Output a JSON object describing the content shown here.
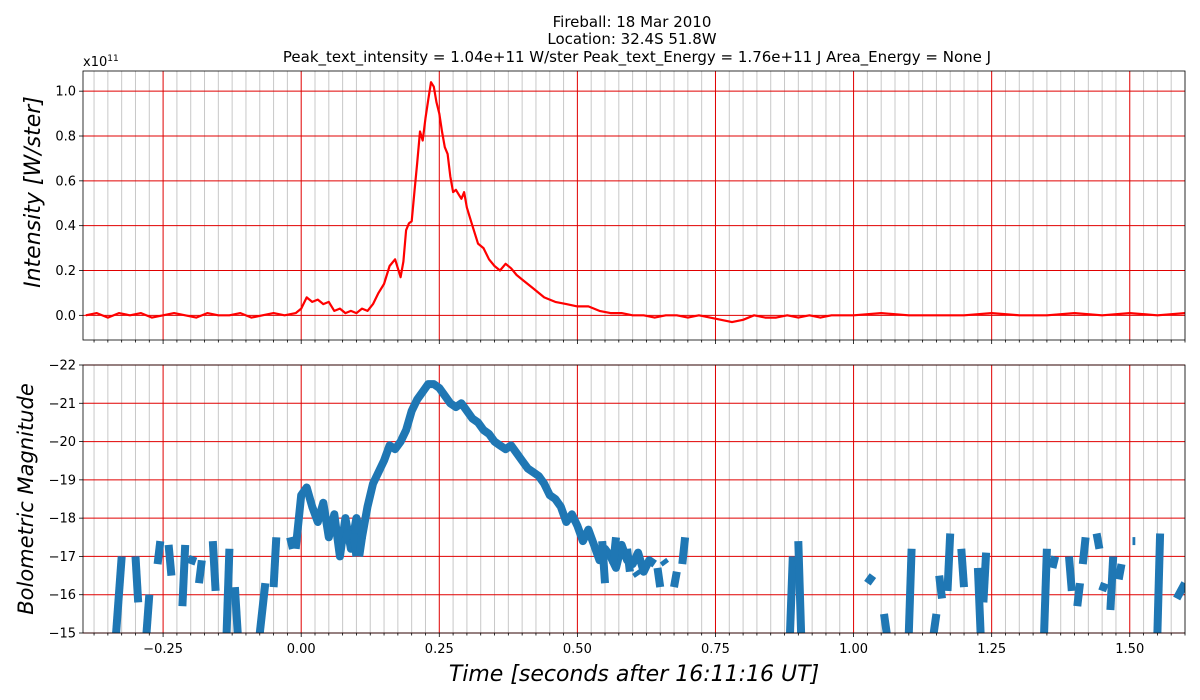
{
  "title_lines": [
    "Fireball: 18 Mar 2010",
    "Location: 32.4S  51.8W",
    "Peak_text_intensity = 1.04e+11 W/ster       Peak_text_Energy = 1.76e+11 J       Area_Energy = None J"
  ],
  "chart_data": [
    {
      "type": "line",
      "ylabel": "Intensity [W/ster]",
      "y_multiplier_label": "x10",
      "y_multiplier_exp": "11",
      "xlim": [
        -0.395,
        1.6
      ],
      "ylim": [
        -0.11,
        1.09
      ],
      "yticks": [
        0.0,
        0.2,
        0.4,
        0.6,
        0.8,
        1.0
      ],
      "ytick_labels": [
        "0.0",
        "0.2",
        "0.4",
        "0.6",
        "0.8",
        "1.0"
      ],
      "grid": true,
      "series": [
        {
          "color": "#ff0000",
          "x": [
            -0.39,
            -0.37,
            -0.35,
            -0.33,
            -0.31,
            -0.29,
            -0.27,
            -0.25,
            -0.23,
            -0.21,
            -0.19,
            -0.17,
            -0.15,
            -0.13,
            -0.11,
            -0.09,
            -0.07,
            -0.05,
            -0.03,
            -0.01,
            0.0,
            0.01,
            0.02,
            0.03,
            0.04,
            0.05,
            0.06,
            0.07,
            0.08,
            0.09,
            0.1,
            0.11,
            0.12,
            0.13,
            0.14,
            0.15,
            0.16,
            0.17,
            0.18,
            0.185,
            0.19,
            0.195,
            0.2,
            0.205,
            0.21,
            0.215,
            0.22,
            0.225,
            0.23,
            0.235,
            0.24,
            0.245,
            0.25,
            0.255,
            0.26,
            0.265,
            0.27,
            0.275,
            0.28,
            0.285,
            0.29,
            0.295,
            0.3,
            0.31,
            0.32,
            0.33,
            0.34,
            0.35,
            0.36,
            0.37,
            0.38,
            0.39,
            0.4,
            0.42,
            0.44,
            0.46,
            0.48,
            0.5,
            0.52,
            0.54,
            0.56,
            0.58,
            0.6,
            0.62,
            0.64,
            0.66,
            0.68,
            0.7,
            0.72,
            0.74,
            0.76,
            0.78,
            0.8,
            0.82,
            0.84,
            0.86,
            0.88,
            0.9,
            0.92,
            0.94,
            0.96,
            0.98,
            1.0,
            1.05,
            1.1,
            1.15,
            1.2,
            1.25,
            1.3,
            1.35,
            1.4,
            1.45,
            1.5,
            1.55,
            1.6
          ],
          "y": [
            0.0,
            0.01,
            -0.01,
            0.01,
            0.0,
            0.01,
            -0.01,
            0.0,
            0.01,
            0.0,
            -0.01,
            0.01,
            0.0,
            0.0,
            0.01,
            -0.01,
            0.0,
            0.01,
            0.0,
            0.01,
            0.03,
            0.08,
            0.06,
            0.07,
            0.05,
            0.06,
            0.02,
            0.03,
            0.01,
            0.02,
            0.01,
            0.03,
            0.02,
            0.05,
            0.1,
            0.14,
            0.22,
            0.25,
            0.17,
            0.24,
            0.38,
            0.41,
            0.42,
            0.55,
            0.68,
            0.82,
            0.78,
            0.88,
            0.96,
            1.04,
            1.02,
            0.95,
            0.9,
            0.82,
            0.75,
            0.72,
            0.62,
            0.55,
            0.56,
            0.54,
            0.52,
            0.55,
            0.48,
            0.4,
            0.32,
            0.3,
            0.25,
            0.22,
            0.2,
            0.23,
            0.21,
            0.18,
            0.16,
            0.12,
            0.08,
            0.06,
            0.05,
            0.04,
            0.04,
            0.02,
            0.01,
            0.01,
            0.0,
            0.0,
            -0.01,
            0.0,
            0.0,
            -0.01,
            0.0,
            -0.01,
            -0.02,
            -0.03,
            -0.02,
            0.0,
            -0.01,
            -0.01,
            0.0,
            -0.01,
            0.0,
            -0.01,
            0.0,
            0.0,
            0.0,
            0.01,
            0.0,
            0.0,
            0.0,
            0.01,
            0.0,
            0.0,
            0.01,
            0.0,
            0.01,
            0.0,
            0.01
          ]
        }
      ]
    },
    {
      "type": "line",
      "ylabel": "Bolometric Magnitude",
      "xlabel": "Time [seconds after 16:11:16 UT]",
      "xlim": [
        -0.395,
        1.6
      ],
      "ylim": [
        -15,
        -22
      ],
      "yticks": [
        -22,
        -21,
        -20,
        -19,
        -18,
        -17,
        -16,
        -15
      ],
      "ytick_labels": [
        "−22",
        "−21",
        "−20",
        "−19",
        "−18",
        "−17",
        "−16",
        "−15"
      ],
      "xticks": [
        -0.25,
        0.0,
        0.25,
        0.5,
        0.75,
        1.0,
        1.25,
        1.5
      ],
      "xtick_labels": [
        "−0.25",
        "0.00",
        "0.25",
        "0.50",
        "0.75",
        "1.00",
        "1.25",
        "1.50"
      ],
      "grid": true,
      "series": [
        {
          "color": "#1f77b4",
          "main_x": [
            -0.01,
            0.0,
            0.01,
            0.02,
            0.03,
            0.04,
            0.05,
            0.06,
            0.07,
            0.08,
            0.09,
            0.1,
            0.11,
            0.12,
            0.13,
            0.14,
            0.15,
            0.16,
            0.17,
            0.18,
            0.19,
            0.2,
            0.21,
            0.22,
            0.23,
            0.24,
            0.25,
            0.26,
            0.27,
            0.28,
            0.29,
            0.3,
            0.31,
            0.32,
            0.33,
            0.34,
            0.35,
            0.36,
            0.37,
            0.38,
            0.39,
            0.4,
            0.41,
            0.42,
            0.43,
            0.44,
            0.45,
            0.46,
            0.47,
            0.48,
            0.49,
            0.5,
            0.51,
            0.52,
            0.53,
            0.54,
            0.55,
            0.56,
            0.57,
            0.58,
            0.59,
            0.6,
            0.61,
            0.62,
            0.63,
            0.64
          ],
          "main_y": [
            -17.2,
            -18.6,
            -18.8,
            -18.3,
            -17.9,
            -18.4,
            -17.5,
            -18.1,
            -17.0,
            -18.0,
            -17.2,
            -18.0,
            -17.5,
            -18.3,
            -18.9,
            -19.2,
            -19.5,
            -19.9,
            -19.8,
            -20.0,
            -20.3,
            -20.8,
            -21.1,
            -21.3,
            -21.5,
            -21.5,
            -21.4,
            -21.2,
            -21.0,
            -20.9,
            -21.0,
            -20.8,
            -20.6,
            -20.5,
            -20.3,
            -20.2,
            -20.0,
            -19.9,
            -19.8,
            -19.9,
            -19.7,
            -19.5,
            -19.3,
            -19.2,
            -19.1,
            -18.9,
            -18.6,
            -18.5,
            -18.3,
            -17.9,
            -18.1,
            -17.8,
            -17.4,
            -17.7,
            -17.3,
            -16.9,
            -17.2,
            -17.0,
            -16.7,
            -17.3,
            -16.9,
            -16.8,
            -17.1,
            -16.6,
            -16.9,
            -16.8
          ],
          "seg_x": [
            [
              -0.335,
              -0.325
            ],
            [
              -0.3,
              -0.295
            ],
            [
              -0.28,
              -0.275
            ],
            [
              -0.26,
              -0.255
            ],
            [
              -0.24,
              -0.235
            ],
            [
              -0.215,
              -0.21
            ],
            [
              -0.2,
              -0.195
            ],
            [
              -0.185,
              -0.18
            ],
            [
              -0.16,
              -0.155
            ],
            [
              -0.135,
              -0.13
            ],
            [
              -0.12,
              -0.115
            ],
            [
              -0.075,
              -0.065
            ],
            [
              -0.05,
              -0.045
            ],
            [
              -0.02,
              -0.015
            ],
            [
              0.08,
              0.085
            ],
            [
              0.095,
              0.1
            ],
            [
              0.105,
              0.11
            ],
            [
              0.545,
              0.55
            ],
            [
              0.565,
              0.57
            ],
            [
              0.59,
              0.595
            ],
            [
              0.605,
              0.61
            ],
            [
              0.645,
              0.65
            ],
            [
              0.655,
              0.66
            ],
            [
              0.675,
              0.68
            ],
            [
              0.69,
              0.695
            ],
            [
              0.885,
              0.89
            ],
            [
              0.9,
              0.905
            ],
            [
              1.025,
              1.035
            ],
            [
              1.055,
              1.06
            ],
            [
              1.1,
              1.105
            ],
            [
              1.145,
              1.15
            ],
            [
              1.155,
              1.16
            ],
            [
              1.17,
              1.175
            ],
            [
              1.195,
              1.2
            ],
            [
              1.225,
              1.23
            ],
            [
              1.235,
              1.24
            ],
            [
              1.345,
              1.35
            ],
            [
              1.36,
              1.365
            ],
            [
              1.39,
              1.395
            ],
            [
              1.405,
              1.41
            ],
            [
              1.415,
              1.42
            ],
            [
              1.44,
              1.445
            ],
            [
              1.45,
              1.455
            ],
            [
              1.465,
              1.47
            ],
            [
              1.48,
              1.485
            ],
            [
              1.505,
              1.51
            ],
            [
              1.55,
              1.555
            ],
            [
              1.585,
              1.6
            ]
          ],
          "seg_y": [
            [
              -15.0,
              -17.0
            ],
            [
              -17.0,
              -15.8
            ],
            [
              -15.0,
              -16.0
            ],
            [
              -16.8,
              -17.4
            ],
            [
              -17.3,
              -16.5
            ],
            [
              -15.7,
              -17.3
            ],
            [
              -16.8,
              -17.0
            ],
            [
              -16.3,
              -16.9
            ],
            [
              -17.4,
              -16.1
            ],
            [
              -15.0,
              -17.2
            ],
            [
              -16.2,
              -15.0
            ],
            [
              -15.0,
              -16.3
            ],
            [
              -16.2,
              -17.5
            ],
            [
              -17.5,
              -17.2
            ],
            [
              -17.4,
              -17.7
            ],
            [
              -17.6,
              -17.0
            ],
            [
              -17.0,
              -17.5
            ],
            [
              -17.4,
              -16.3
            ],
            [
              -16.8,
              -17.5
            ],
            [
              -17.2,
              -16.6
            ],
            [
              -16.6,
              -16.5
            ],
            [
              -16.7,
              -16.2
            ],
            [
              -16.9,
              -16.8
            ],
            [
              -16.2,
              -16.6
            ],
            [
              -16.8,
              -17.5
            ],
            [
              -15.0,
              -17.0
            ],
            [
              -17.4,
              -15.0
            ],
            [
              -16.3,
              -16.5
            ],
            [
              -15.5,
              -15.0
            ],
            [
              -15.0,
              -17.2
            ],
            [
              -15.0,
              -15.5
            ],
            [
              -16.5,
              -15.9
            ],
            [
              -16.1,
              -17.6
            ],
            [
              -17.2,
              -16.2
            ],
            [
              -16.7,
              -15.0
            ],
            [
              -15.8,
              -17.1
            ],
            [
              -15.0,
              -17.2
            ],
            [
              -16.7,
              -17.0
            ],
            [
              -17.0,
              -16.1
            ],
            [
              -15.7,
              -16.3
            ],
            [
              -16.8,
              -17.5
            ],
            [
              -17.6,
              -17.2
            ],
            [
              -16.1,
              -16.3
            ],
            [
              -15.6,
              -17.0
            ],
            [
              -16.4,
              -16.8
            ],
            [
              -17.4,
              -17.4
            ],
            [
              -15.0,
              -17.6
            ],
            [
              -15.9,
              -16.3
            ]
          ]
        }
      ]
    }
  ]
}
